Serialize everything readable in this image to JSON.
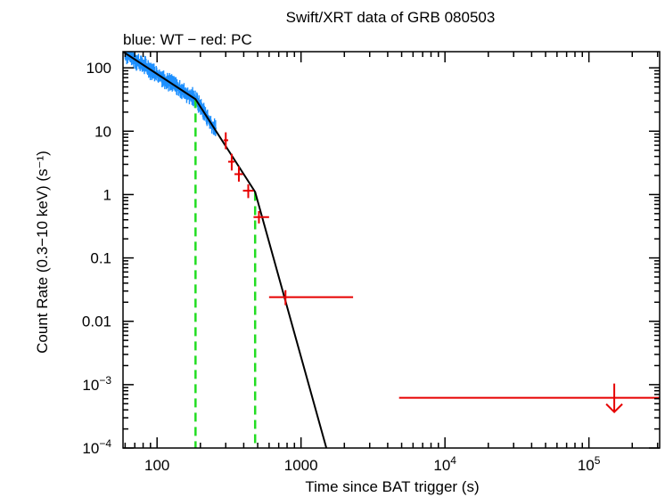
{
  "chart_data": {
    "type": "scatter",
    "title": "Swift/XRT data of GRB 080503",
    "subtitle": "blue: WT − red: PC",
    "xlabel": "Time since BAT trigger (s)",
    "ylabel": "Count Rate (0.3−10 keV) (s⁻¹)",
    "xscale": "log",
    "yscale": "log",
    "xlim": [
      58,
      310000
    ],
    "ylim": [
      0.0001,
      180
    ],
    "x_ticks": [
      {
        "value": 100,
        "label": "100",
        "sup": ""
      },
      {
        "value": 1000,
        "label": "1000",
        "sup": ""
      },
      {
        "value": 10000,
        "label": "10",
        "sup": "4"
      },
      {
        "value": 100000,
        "label": "10",
        "sup": "5"
      }
    ],
    "y_ticks": [
      {
        "value": 100,
        "label": "100",
        "sup": ""
      },
      {
        "value": 10,
        "label": "10",
        "sup": ""
      },
      {
        "value": 1,
        "label": "1",
        "sup": ""
      },
      {
        "value": 0.1,
        "label": "0.1",
        "sup": ""
      },
      {
        "value": 0.01,
        "label": "0.01",
        "sup": ""
      },
      {
        "value": 0.001,
        "label": "10",
        "sup": "−3"
      },
      {
        "value": 0.0001,
        "label": "10",
        "sup": "−4"
      }
    ],
    "legend": "none",
    "grid": false,
    "colors": {
      "wt": "#1e90ff",
      "pc": "#e60000",
      "model": "#000000",
      "breaks": "#22dd22"
    },
    "model_line": {
      "x": [
        58,
        185,
        480,
        1500
      ],
      "y": [
        180,
        32,
        1.1,
        0.0001
      ]
    },
    "break_times": [
      185,
      480
    ],
    "wt_series": {
      "name": "WT",
      "x_start": 60,
      "x_end": 255,
      "n_points": 170,
      "scatter_dex": 0.05
    },
    "pc_series": {
      "name": "PC",
      "points": [
        {
          "x": 300,
          "xlo": 290,
          "xhi": 312,
          "y": 7.2,
          "ylo": 5.2,
          "yhi": 9.6
        },
        {
          "x": 330,
          "xlo": 312,
          "xhi": 345,
          "y": 3.3,
          "ylo": 2.4,
          "yhi": 4.4
        },
        {
          "x": 370,
          "xlo": 345,
          "xhi": 395,
          "y": 2.1,
          "ylo": 1.6,
          "yhi": 2.8
        },
        {
          "x": 430,
          "xlo": 395,
          "xhi": 468,
          "y": 1.15,
          "ylo": 0.88,
          "yhi": 1.45
        },
        {
          "x": 510,
          "xlo": 468,
          "xhi": 600,
          "y": 0.44,
          "ylo": 0.35,
          "yhi": 0.55
        },
        {
          "x": 780,
          "xlo": 600,
          "xhi": 2300,
          "y": 0.024,
          "ylo": 0.018,
          "yhi": 0.031
        }
      ],
      "upper_limits": [
        {
          "x": 150000,
          "xlo": 4800,
          "xhi": 310000,
          "y": 0.00062
        }
      ]
    }
  }
}
